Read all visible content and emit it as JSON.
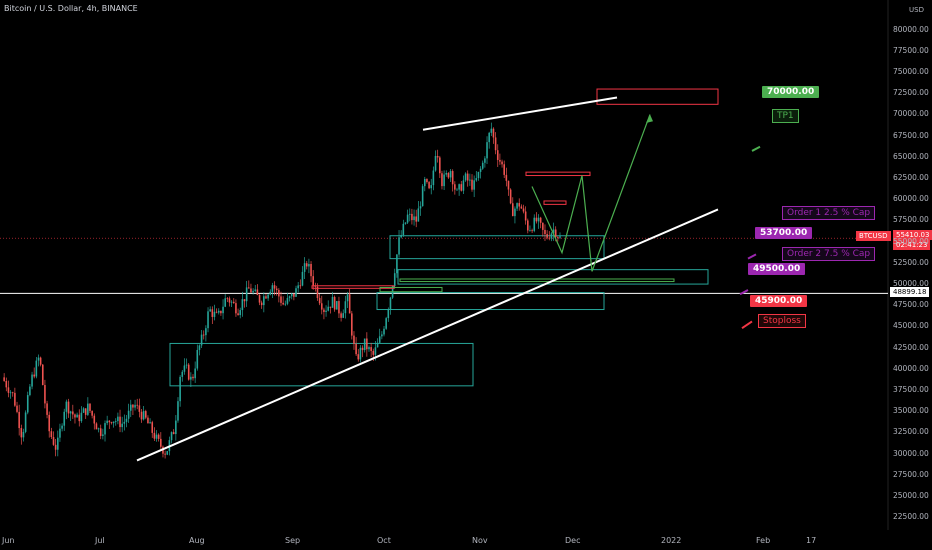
{
  "header": {
    "title": "Bitcoin / U.S. Dollar, 4h, BINANCE",
    "axis_unit": "USD"
  },
  "chart_data": {
    "type": "candlestick",
    "symbol": "BTCUSD",
    "timeframe": "4h",
    "exchange": "BINANCE",
    "x_ticks": [
      "Jun",
      "Jul",
      "Aug",
      "Sep",
      "Oct",
      "Nov",
      "Dec",
      "2022",
      "Feb",
      "17"
    ],
    "y_ticks": [
      22500,
      25000,
      27500,
      30000,
      32500,
      35000,
      37500,
      40000,
      42500,
      45000,
      47500,
      50000,
      52500,
      55000,
      57500,
      60000,
      62500,
      65000,
      67500,
      70000,
      72500,
      75000,
      77500,
      80000
    ],
    "y_tick_labels": [
      "22500.00",
      "25000.00",
      "27500.00",
      "30000.00",
      "32500.00",
      "35000.00",
      "37500.00",
      "40000.00",
      "42500.00",
      "45000.00",
      "47500.00",
      "50000.00",
      "52500.00",
      "55000.00",
      "57500.00",
      "60000.00",
      "62500.00",
      "65000.00",
      "67500.00",
      "70000.00",
      "72500.00",
      "75000.00",
      "77500.00",
      "80000.00"
    ],
    "y_top_partial_label": "82500.00",
    "ylim": [
      21000,
      83500
    ],
    "last_price": "55410.03",
    "last_price_value": 55410.03,
    "countdown": "02:41:23",
    "level_line": "48899.18",
    "level_line_value": 48899.18,
    "price_path": [
      [
        0.0,
        39000
      ],
      [
        0.02,
        36800
      ],
      [
        0.035,
        32000
      ],
      [
        0.05,
        38500
      ],
      [
        0.065,
        41500
      ],
      [
        0.08,
        33000
      ],
      [
        0.095,
        30500
      ],
      [
        0.11,
        36000
      ],
      [
        0.13,
        34000
      ],
      [
        0.15,
        35500
      ],
      [
        0.17,
        32500
      ],
      [
        0.19,
        34200
      ],
      [
        0.21,
        33500
      ],
      [
        0.23,
        35800
      ],
      [
        0.25,
        34000
      ],
      [
        0.27,
        31500
      ],
      [
        0.285,
        30100
      ],
      [
        0.3,
        33000
      ],
      [
        0.31,
        39500
      ],
      [
        0.32,
        40000
      ],
      [
        0.33,
        38500
      ],
      [
        0.34,
        42000
      ],
      [
        0.35,
        44000
      ],
      [
        0.36,
        47000
      ],
      [
        0.375,
        46000
      ],
      [
        0.39,
        48500
      ],
      [
        0.41,
        47000
      ],
      [
        0.43,
        49500
      ],
      [
        0.45,
        48000
      ],
      [
        0.47,
        50000
      ],
      [
        0.49,
        47500
      ],
      [
        0.51,
        49000
      ],
      [
        0.53,
        52500
      ],
      [
        0.545,
        49500
      ],
      [
        0.56,
        47000
      ],
      [
        0.575,
        48000
      ],
      [
        0.59,
        46500
      ],
      [
        0.6,
        48500
      ],
      [
        0.615,
        41000
      ],
      [
        0.63,
        43000
      ],
      [
        0.645,
        41500
      ],
      [
        0.66,
        44000
      ],
      [
        0.675,
        48500
      ],
      [
        0.69,
        55000
      ],
      [
        0.705,
        58000
      ],
      [
        0.72,
        57500
      ],
      [
        0.735,
        62000
      ],
      [
        0.745,
        60500
      ],
      [
        0.755,
        66500
      ],
      [
        0.765,
        62000
      ],
      [
        0.78,
        63500
      ],
      [
        0.79,
        60500
      ],
      [
        0.805,
        62500
      ],
      [
        0.82,
        61500
      ],
      [
        0.835,
        64000
      ],
      [
        0.85,
        68500
      ],
      [
        0.86,
        65500
      ],
      [
        0.875,
        63000
      ],
      [
        0.885,
        58500
      ],
      [
        0.9,
        59500
      ],
      [
        0.915,
        56500
      ],
      [
        0.93,
        57500
      ],
      [
        0.945,
        55500
      ],
      [
        0.96,
        56500
      ],
      [
        0.97,
        55410
      ]
    ],
    "trendlines": [
      {
        "name": "support-trendline",
        "from": [
          "Jul",
          29200
        ],
        "to": [
          "Dec",
          58800
        ],
        "color": "#ffffff"
      },
      {
        "name": "resistance-trendline",
        "from": [
          "Oct",
          68200
        ],
        "to": [
          "Dec",
          72000
        ],
        "color": "#ffffff"
      }
    ],
    "projection": [
      53700,
      62800,
      51500,
      70000
    ],
    "zones": [
      {
        "name": "demand-zone-aug",
        "low": 38000,
        "high": 43000,
        "color": "#26a69a"
      },
      {
        "name": "demand-zone-oct",
        "low": 53000,
        "high": 55700,
        "color": "#26a69a"
      },
      {
        "name": "demand-zone-nov",
        "low": 50000,
        "high": 51700,
        "color": "#26a69a"
      },
      {
        "name": "demand-zone-lower",
        "low": 47000,
        "high": 49000,
        "color": "#26a69a"
      },
      {
        "name": "target-zone",
        "low": 71200,
        "high": 73000,
        "color": "#f23645"
      }
    ]
  },
  "annotations": {
    "tp_price": "70000.00",
    "tp_label": "TP1",
    "order1_label": "Order 1 2.5 % Cap",
    "order1_price": "53700.00",
    "order2_label": "Order 2 7.5 % Cap",
    "order2_price": "49500.00",
    "stop_price": "45900.00",
    "stop_label": "Stoploss"
  },
  "colors": {
    "background": "#000000",
    "up": "#26a69a",
    "down": "#ef5350",
    "green_label": "#4caf50",
    "purple_label": "#9c27b0",
    "red_label": "#f23645"
  }
}
